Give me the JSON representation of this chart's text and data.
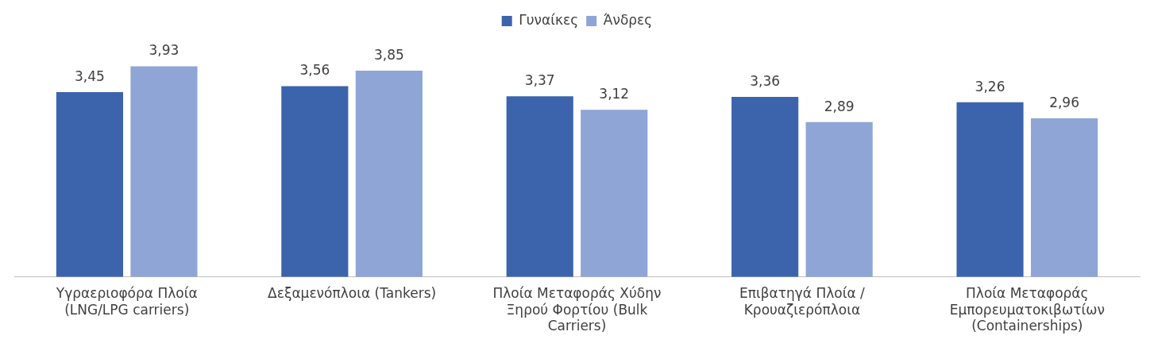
{
  "chart_data": {
    "type": "bar",
    "categories": [
      "Υγραεριοφόρα Πλοία (LNG/LPG carriers)",
      "Δεξαμενόπλοια (Tankers)",
      "Πλοία Μεταφοράς Χύδην Ξηρού Φορτίου (Bulk Carriers)",
      "Επιβατηγά Πλοία / Κρουαζιερόπλοια",
      "Πλοία Μεταφοράς Εμπορευματοκιβωτίων (Containerships)"
    ],
    "series": [
      {
        "name": "Γυναίκες",
        "color": "#3c64ad",
        "values": [
          3.45,
          3.56,
          3.37,
          3.36,
          3.26
        ],
        "value_labels": [
          "3,45",
          "3,56",
          "3,37",
          "3,36",
          "3,26"
        ]
      },
      {
        "name": "Άνδρες",
        "color": "#8fa5d6",
        "values": [
          3.93,
          3.85,
          3.12,
          2.89,
          2.96
        ],
        "value_labels": [
          "3,93",
          "3,85",
          "3,12",
          "2,89",
          "2,96"
        ]
      }
    ],
    "legend": "top",
    "grid": false
  }
}
